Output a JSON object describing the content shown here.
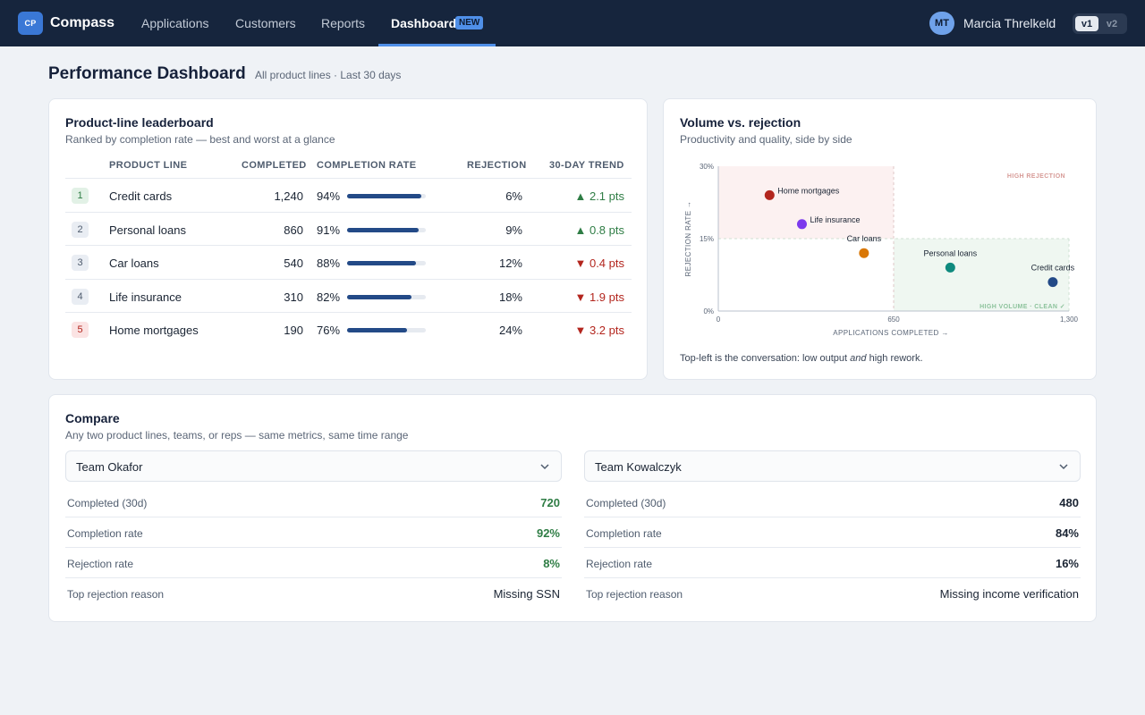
{
  "topbar": {
    "logo_text": "CP",
    "brand": "Compass",
    "nav": [
      {
        "label": "Applications"
      },
      {
        "label": "Customers"
      },
      {
        "label": "Reports"
      }
    ],
    "active_nav": {
      "label": "Dashboard",
      "badge": "NEW"
    },
    "user": {
      "initials": "MT",
      "name": "Marcia Threlkeld"
    },
    "version": {
      "options": [
        "v1",
        "v2"
      ],
      "selected": "v1"
    }
  },
  "header": {
    "title": "Performance Dashboard",
    "subtitle": "All product lines · Last 30 days"
  },
  "leaderboard": {
    "title": "Product-line leaderboard",
    "subtitle": "Ranked by completion rate — best and worst at a glance",
    "columns": [
      "PRODUCT LINE",
      "COMPLETED",
      "COMPLETION RATE",
      "REJECTION",
      "30-DAY TREND"
    ],
    "rows": [
      {
        "rank": "1",
        "name": "Credit cards",
        "completed": "1,240",
        "rate": "94%",
        "rate_value": 94,
        "rejection": "6%",
        "trend": "▲ 2.1 pts",
        "trend_dir": "up"
      },
      {
        "rank": "2",
        "name": "Personal loans",
        "completed": "860",
        "rate": "91%",
        "rate_value": 91,
        "rejection": "9%",
        "trend": "▲ 0.8 pts",
        "trend_dir": "up"
      },
      {
        "rank": "3",
        "name": "Car loans",
        "completed": "540",
        "rate": "88%",
        "rate_value": 88,
        "rejection": "12%",
        "trend": "▼ 0.4 pts",
        "trend_dir": "down"
      },
      {
        "rank": "4",
        "name": "Life insurance",
        "completed": "310",
        "rate": "82%",
        "rate_value": 82,
        "rejection": "18%",
        "trend": "▼ 1.9 pts",
        "trend_dir": "down"
      },
      {
        "rank": "5",
        "name": "Home mortgages",
        "completed": "190",
        "rate": "76%",
        "rate_value": 76,
        "rejection": "24%",
        "trend": "▼ 3.2 pts",
        "trend_dir": "down"
      }
    ]
  },
  "scatter": {
    "title": "Volume vs. rejection",
    "subtitle": "Productivity and quality, side by side",
    "note_pre": "Top-left is the conversation: low output ",
    "note_em": "and",
    "note_post": " high rework.",
    "colors": {
      "high_rejection": "#b3261e",
      "clean": "#2f7d45"
    }
  },
  "chart_data": {
    "type": "scatter",
    "title": "",
    "xlabel": "APPLICATIONS COMPLETED →",
    "ylabel": "REJECTION RATE →",
    "xlim": [
      0,
      1300
    ],
    "ylim": [
      0,
      30
    ],
    "x_ticks": [
      {
        "value": 0,
        "label": "0"
      },
      {
        "value": 650,
        "label": "650"
      },
      {
        "value": 1300,
        "label": "1,300"
      }
    ],
    "y_ticks": [
      {
        "value": 0,
        "label": "0%"
      },
      {
        "value": 15,
        "label": "15%"
      },
      {
        "value": 30,
        "label": "30%"
      }
    ],
    "zones": [
      {
        "label": "HIGH REJECTION",
        "x": [
          0,
          650
        ],
        "y": [
          15,
          30
        ],
        "color": "#fcf1f1"
      },
      {
        "label": "HIGH VOLUME · CLEAN ✓",
        "x": [
          650,
          1300
        ],
        "y": [
          0,
          15
        ],
        "color": "#eff7f1"
      }
    ],
    "points": [
      {
        "name": "Home mortgages",
        "x": 190,
        "y": 24,
        "color": "#b3261e"
      },
      {
        "name": "Life insurance",
        "x": 310,
        "y": 18,
        "color": "#7c3aed"
      },
      {
        "name": "Car loans",
        "x": 540,
        "y": 12,
        "color": "#d97706"
      },
      {
        "name": "Personal loans",
        "x": 860,
        "y": 9,
        "color": "#0f8a7e"
      },
      {
        "name": "Credit cards",
        "x": 1240,
        "y": 6,
        "color": "#234a87"
      }
    ]
  },
  "compare": {
    "title": "Compare",
    "subtitle": "Any two product lines, teams, or reps — same metrics, same time range",
    "left": {
      "team": "Team Okafor",
      "metrics": [
        {
          "label": "Completed (30d)",
          "value": "720"
        },
        {
          "label": "Completion rate",
          "value": "92%"
        },
        {
          "label": "Rejection rate",
          "value": "8%"
        },
        {
          "label": "Top rejection reason",
          "value": "Missing SSN"
        }
      ]
    },
    "right": {
      "team": "Team Kowalczyk",
      "metrics": [
        {
          "label": "Completed (30d)",
          "value": "480"
        },
        {
          "label": "Completion rate",
          "value": "84%"
        },
        {
          "label": "Rejection rate",
          "value": "16%"
        },
        {
          "label": "Top rejection reason",
          "value": "Missing income verification"
        }
      ]
    }
  }
}
